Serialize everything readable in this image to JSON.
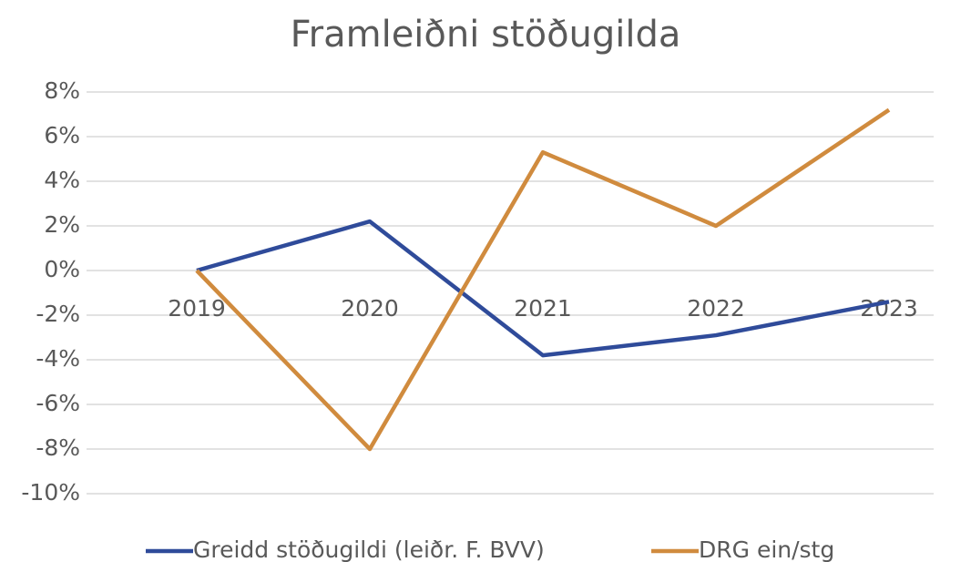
{
  "chart_data": {
    "type": "line",
    "title": "Framleiðni stöðugilda",
    "categories": [
      "2019",
      "2020",
      "2021",
      "2022",
      "2023"
    ],
    "series": [
      {
        "name": "Greidd stöðugildi (leiðr. F. BVV)",
        "color": "#2f4b9a",
        "values": [
          0,
          2.2,
          -3.8,
          -2.9,
          -1.4
        ]
      },
      {
        "name": "DRG ein/stg",
        "color": "#d08b3e",
        "values": [
          0,
          -8,
          5.3,
          2.0,
          7.2
        ]
      }
    ],
    "ylim": [
      -10,
      8
    ],
    "yticks": [
      {
        "value": -10,
        "label": "-10%"
      },
      {
        "value": -8,
        "label": "-8%"
      },
      {
        "value": -6,
        "label": "-6%"
      },
      {
        "value": -4,
        "label": "-4%"
      },
      {
        "value": -2,
        "label": "-2%"
      },
      {
        "value": 0,
        "label": "0%"
      },
      {
        "value": 2,
        "label": "2%"
      },
      {
        "value": 4,
        "label": "4%"
      },
      {
        "value": 6,
        "label": "6%"
      },
      {
        "value": 8,
        "label": "8%"
      }
    ],
    "grid": true,
    "legend": "bottom"
  }
}
